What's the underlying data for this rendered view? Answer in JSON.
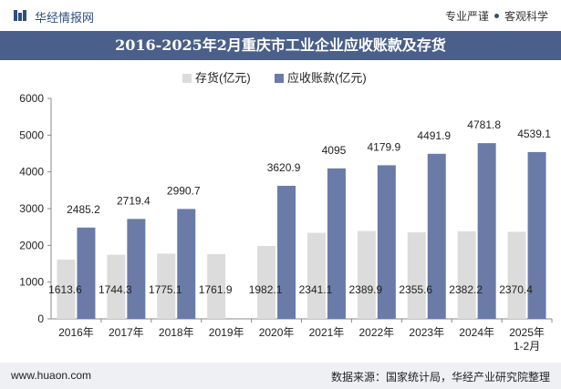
{
  "header": {
    "brand": "华经情报网",
    "slogan_left": "专业严谨",
    "slogan_right": "客观科学"
  },
  "chart_data": {
    "type": "bar",
    "title": "2016-2025年2月重庆市工业企业应收账款及存货",
    "categories": [
      "2016年",
      "2017年",
      "2018年",
      "2019年",
      "2020年",
      "2021年",
      "2022年",
      "2023年",
      "2024年",
      "2025年\n1-2月"
    ],
    "series": [
      {
        "name": "存货(亿元)",
        "color": "#dcdcdc",
        "values": [
          1613.6,
          1744.3,
          1775.1,
          1761.9,
          1982.1,
          2341.1,
          2389.9,
          2355.6,
          2382.2,
          2370.4
        ]
      },
      {
        "name": "应收账款(亿元)",
        "color": "#6a7ba8",
        "values": [
          2485.2,
          2719.4,
          2990.7,
          null,
          3620.9,
          4095,
          4179.9,
          4491.9,
          4781.8,
          4539.1
        ]
      }
    ],
    "ylim": [
      0,
      6000
    ],
    "yticks": [
      0,
      1000,
      2000,
      3000,
      4000,
      5000,
      6000
    ],
    "legend_position": "top-center",
    "grid": false
  },
  "footer": {
    "url": "www.huaon.com",
    "source": "数据来源：国家统计局，华经产业研究院整理"
  }
}
